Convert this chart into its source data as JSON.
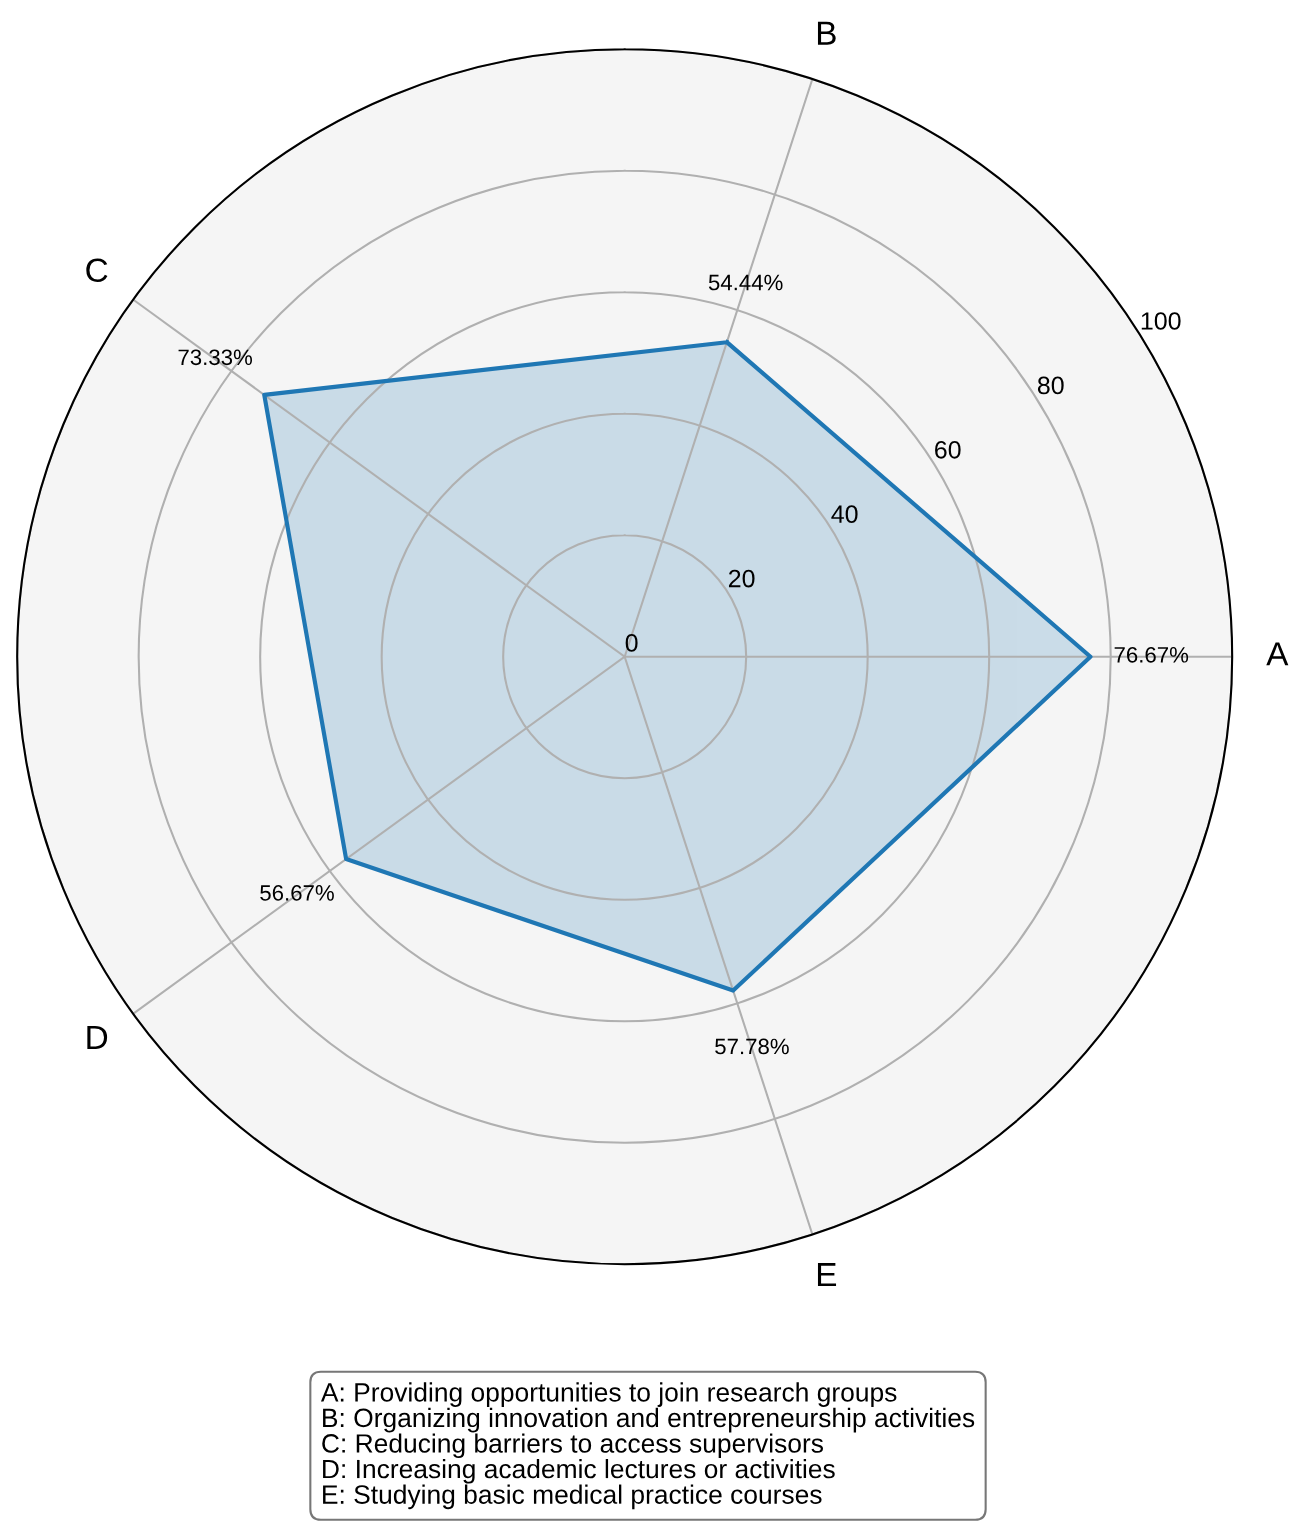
{
  "chart_data": {
    "type": "radar",
    "categories": [
      "B",
      "A",
      "E",
      "D",
      "C"
    ],
    "series": [
      {
        "color": "#1f77b4",
        "values": [
          54.44,
          76.67,
          57.78,
          56.67,
          73.33
        ],
        "value_labels": [
          "54.44%",
          "76.67%",
          "57.78%",
          "56.67%",
          "73.33%"
        ]
      }
    ],
    "ylim": [
      0,
      100
    ],
    "yticks": [
      0,
      20,
      40,
      60,
      80,
      100
    ],
    "grid": true,
    "annotations": [
      "A: Providing opportunities to join research groups",
      "B: Organizing innovation and entrepreneurship activities",
      "C: Reducing barriers to access supervisors",
      "D: Increasing academic lectures or activities",
      "E: Studying basic medical practice courses"
    ]
  }
}
